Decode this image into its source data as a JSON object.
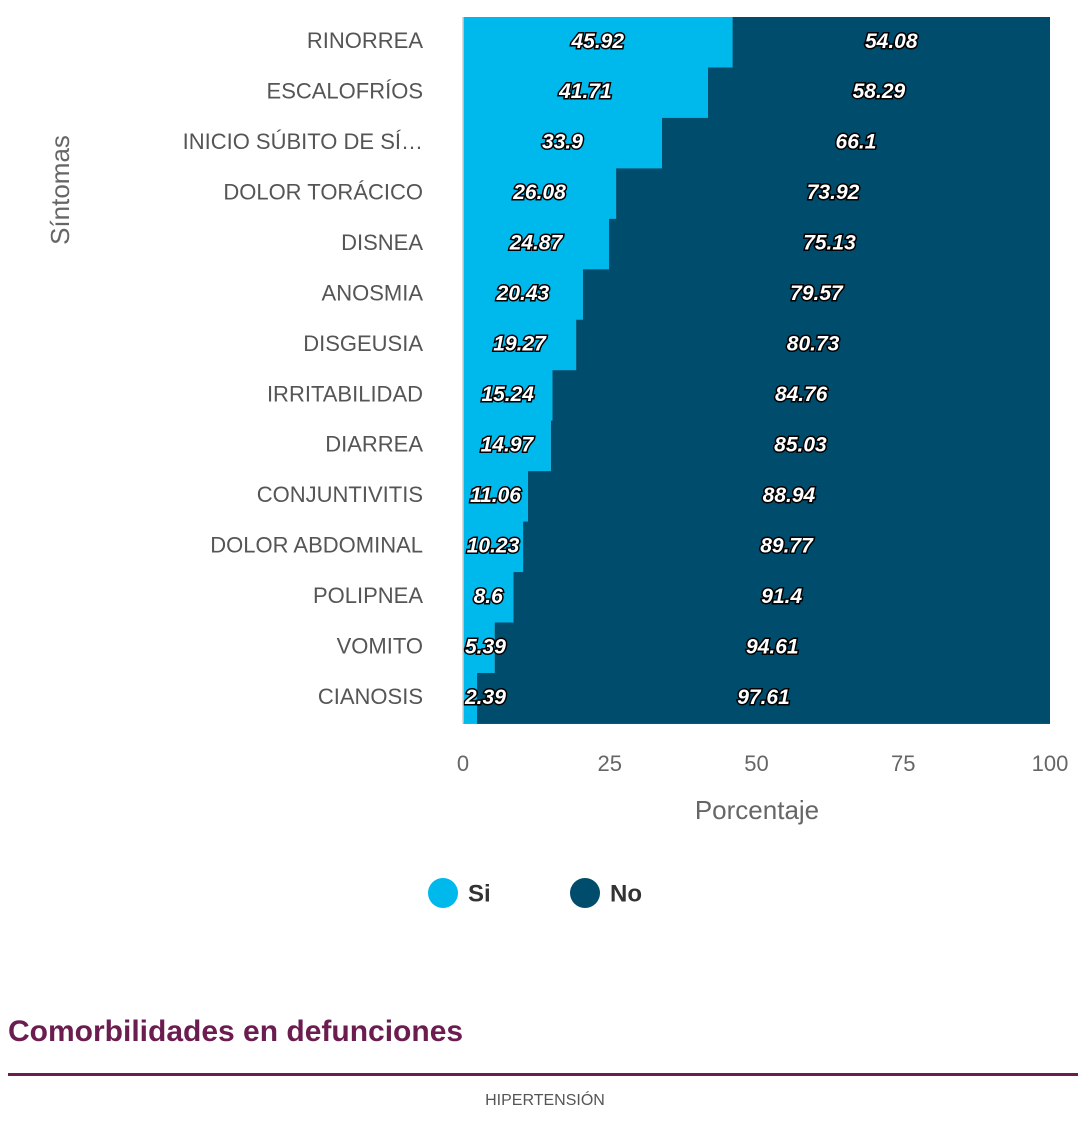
{
  "chart_data": {
    "type": "stacked_barh",
    "categories": [
      "RINORREA",
      "ESCALOFRÍOS",
      "INICIO SÚBITO DE SÍ…",
      "DOLOR TORÁCICO",
      "DISNEA",
      "ANOSMIA",
      "DISGEUSIA",
      "IRRITABILIDAD",
      "DIARREA",
      "CONJUNTIVITIS",
      "DOLOR ABDOMINAL",
      "POLIPNEA",
      "VOMITO",
      "CIANOSIS"
    ],
    "series": [
      {
        "name": "Si",
        "color": "#00b9ec",
        "values": [
          45.92,
          41.71,
          33.9,
          26.08,
          24.87,
          20.43,
          19.27,
          15.24,
          14.97,
          11.06,
          10.23,
          8.6,
          5.39,
          2.39
        ]
      },
      {
        "name": "No",
        "color": "#004c6d",
        "values": [
          54.08,
          58.29,
          66.1,
          73.92,
          75.13,
          79.57,
          80.73,
          84.76,
          85.03,
          88.94,
          89.77,
          91.4,
          94.61,
          97.61
        ]
      }
    ],
    "xlim": [
      0,
      100
    ],
    "xticks": [
      0,
      25,
      50,
      75,
      100
    ],
    "xlabel": "Porcentaje",
    "ylabel": "Síntomas",
    "legend": "bottom"
  },
  "section": {
    "title": "Comorbilidades en defunciones",
    "subtitle": "HIPERTENSIÓN"
  }
}
